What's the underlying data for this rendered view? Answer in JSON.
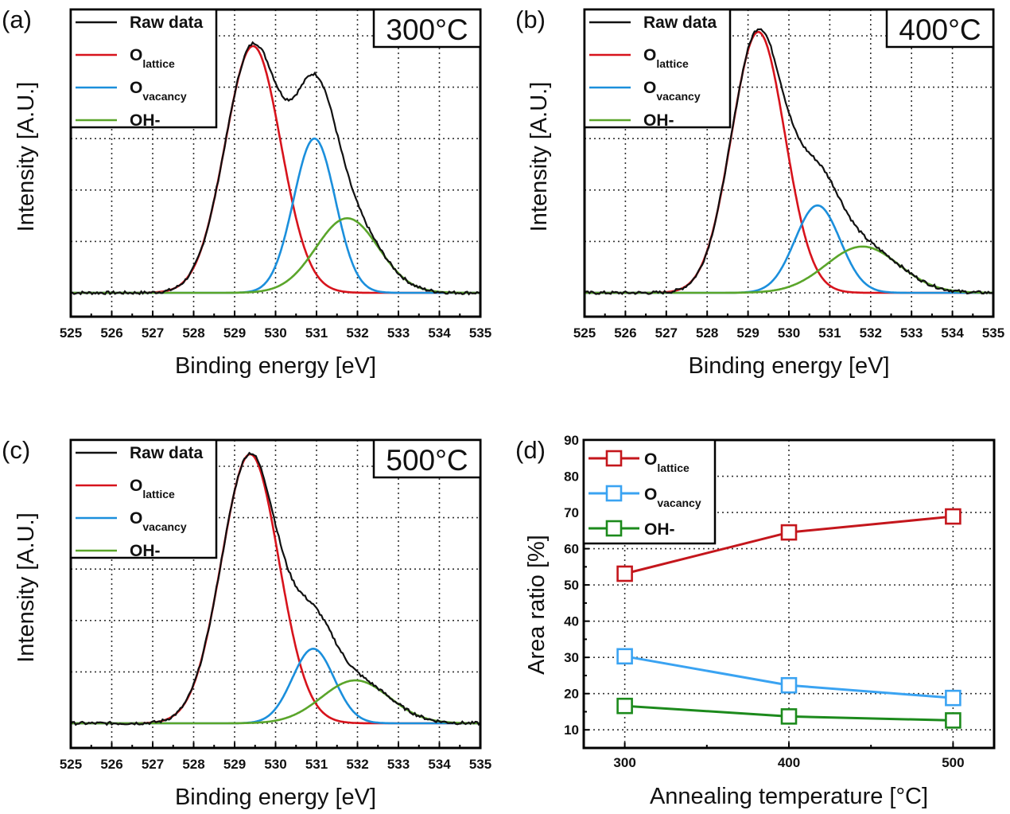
{
  "chart_data": [
    {
      "type": "line",
      "panel_label": "(a)",
      "annotation": "300°C",
      "xlabel": "Binding energy [eV]",
      "ylabel": "Intensity [A.U.]",
      "xlim": [
        535,
        525
      ],
      "xticks": [
        "525",
        "526",
        "527",
        "528",
        "529",
        "530",
        "531",
        "532",
        "533",
        "534",
        "535"
      ],
      "grid": true,
      "legend": "top-left",
      "series": [
        {
          "name": "Raw data",
          "main": "Raw data",
          "sub": "",
          "color": "#111111"
        },
        {
          "name": "O lattice",
          "main": "O",
          "sub": "lattice",
          "color": "#d7131c",
          "center": 529.45,
          "amplitude": 0.96,
          "fwhm": 1.6
        },
        {
          "name": "O vacancy",
          "main": "O",
          "sub": "vacancy",
          "color": "#1b8fdc",
          "center": 530.95,
          "amplitude": 0.6,
          "fwhm": 1.2
        },
        {
          "name": "OH-",
          "main": "OH-",
          "sub": "",
          "color": "#5aa52a",
          "center": 531.75,
          "amplitude": 0.29,
          "fwhm": 1.8
        }
      ]
    },
    {
      "type": "line",
      "panel_label": "(b)",
      "annotation": "400°C",
      "xlabel": "Binding energy [eV]",
      "ylabel": "Intensity [A.U.]",
      "xlim": [
        535,
        525
      ],
      "xticks": [
        "525",
        "526",
        "527",
        "528",
        "529",
        "530",
        "531",
        "532",
        "533",
        "534",
        "535"
      ],
      "grid": true,
      "legend": "top-left",
      "series": [
        {
          "name": "Raw data",
          "main": "Raw data",
          "sub": "",
          "color": "#111111"
        },
        {
          "name": "O lattice",
          "main": "O",
          "sub": "lattice",
          "color": "#d7131c",
          "center": 529.25,
          "amplitude": 1.015,
          "fwhm": 1.54
        },
        {
          "name": "O vacancy",
          "main": "O",
          "sub": "vacancy",
          "color": "#1b8fdc",
          "center": 530.7,
          "amplitude": 0.34,
          "fwhm": 1.3
        },
        {
          "name": "OH-",
          "main": "OH-",
          "sub": "",
          "color": "#5aa52a",
          "center": 531.8,
          "amplitude": 0.18,
          "fwhm": 2.1
        }
      ]
    },
    {
      "type": "line",
      "panel_label": "(c)",
      "annotation": "500°C",
      "xlabel": "Binding energy [eV]",
      "ylabel": "Intensity [A.U.]",
      "xlim": [
        535,
        525
      ],
      "xticks": [
        "525",
        "526",
        "527",
        "528",
        "529",
        "530",
        "531",
        "532",
        "533",
        "534",
        "535"
      ],
      "grid": true,
      "legend": "top-left",
      "series": [
        {
          "name": "Raw data",
          "main": "Raw data",
          "sub": "",
          "color": "#111111"
        },
        {
          "name": "O lattice",
          "main": "O",
          "sub": "lattice",
          "color": "#d7131c",
          "center": 529.38,
          "amplitude": 1.047,
          "fwhm": 1.65
        },
        {
          "name": "O vacancy",
          "main": "O",
          "sub": "vacancy",
          "color": "#1b8fdc",
          "center": 530.92,
          "amplitude": 0.29,
          "fwhm": 1.2
        },
        {
          "name": "OH-",
          "main": "OH-",
          "sub": "",
          "color": "#5aa52a",
          "center": 531.95,
          "amplitude": 0.167,
          "fwhm": 1.95
        }
      ]
    },
    {
      "type": "line",
      "panel_label": "(d)",
      "xlabel": "Annealing temperature [°C]",
      "ylabel": "Area ratio [%]",
      "x": [
        300,
        400,
        500
      ],
      "xticks": [
        "300",
        "400",
        "500"
      ],
      "xlim": [
        275,
        525
      ],
      "ylim": [
        5,
        90
      ],
      "yticks": [
        "10",
        "20",
        "30",
        "40",
        "50",
        "60",
        "70",
        "80",
        "90"
      ],
      "grid": true,
      "legend": "top-left",
      "marker": "open-square",
      "series": [
        {
          "name": "O lattice",
          "main": "O",
          "sub": "lattice",
          "color": "#c4161c",
          "values": [
            53.1,
            64.5,
            68.9
          ]
        },
        {
          "name": "O vacancy",
          "main": "O",
          "sub": "vacancy",
          "color": "#3aa3f2",
          "values": [
            30.3,
            22.3,
            18.8
          ]
        },
        {
          "name": "OH-",
          "main": "OH-",
          "sub": "",
          "color": "#1c8a1c",
          "values": [
            16.6,
            13.7,
            12.6
          ]
        }
      ]
    }
  ]
}
